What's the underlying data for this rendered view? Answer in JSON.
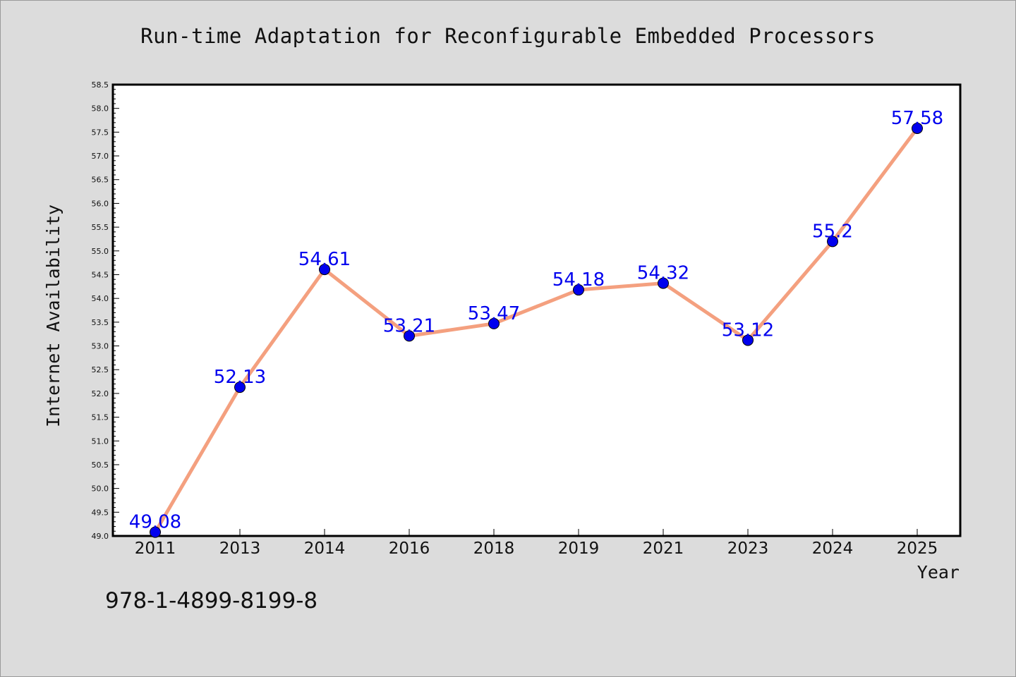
{
  "page": {
    "background": "#dcdcdc",
    "title": "Run-time Adaptation for Reconfigurable Embedded Processors",
    "isbn": "978-1-4899-8199-8"
  },
  "chart_data": {
    "type": "line",
    "title": "Run-time Adaptation for Reconfigurable Embedded Processors",
    "xlabel": "Year",
    "ylabel": "Internet Availability",
    "categories": [
      "2011",
      "2013",
      "2014",
      "2016",
      "2018",
      "2019",
      "2021",
      "2023",
      "2024",
      "2025"
    ],
    "series": [
      {
        "values": [
          49.08,
          52.13,
          54.61,
          53.21,
          53.47,
          54.18,
          54.32,
          53.12,
          55.2,
          57.58
        ],
        "labels": [
          "49.08",
          "52.13",
          "54.61",
          "53.21",
          "53.47",
          "54.18",
          "54.32",
          "53.12",
          "55.2",
          "57.58"
        ]
      }
    ],
    "ylim": [
      49.0,
      58.5
    ],
    "yticks": [
      "49.0",
      "49.5",
      "50.0",
      "50.5",
      "51.0",
      "51.5",
      "52.0",
      "52.5",
      "53.0",
      "53.5",
      "54.0",
      "54.5",
      "55.0",
      "55.5",
      "56.0",
      "56.5",
      "57.0",
      "57.5",
      "58.0",
      "58.5"
    ],
    "grid": false,
    "legend": "none",
    "colors": {
      "line": "#f4a07f",
      "marker": "#0000ee",
      "data_label": "#0000ee",
      "plot_background": "#ffffff",
      "axis": "#000000"
    }
  }
}
